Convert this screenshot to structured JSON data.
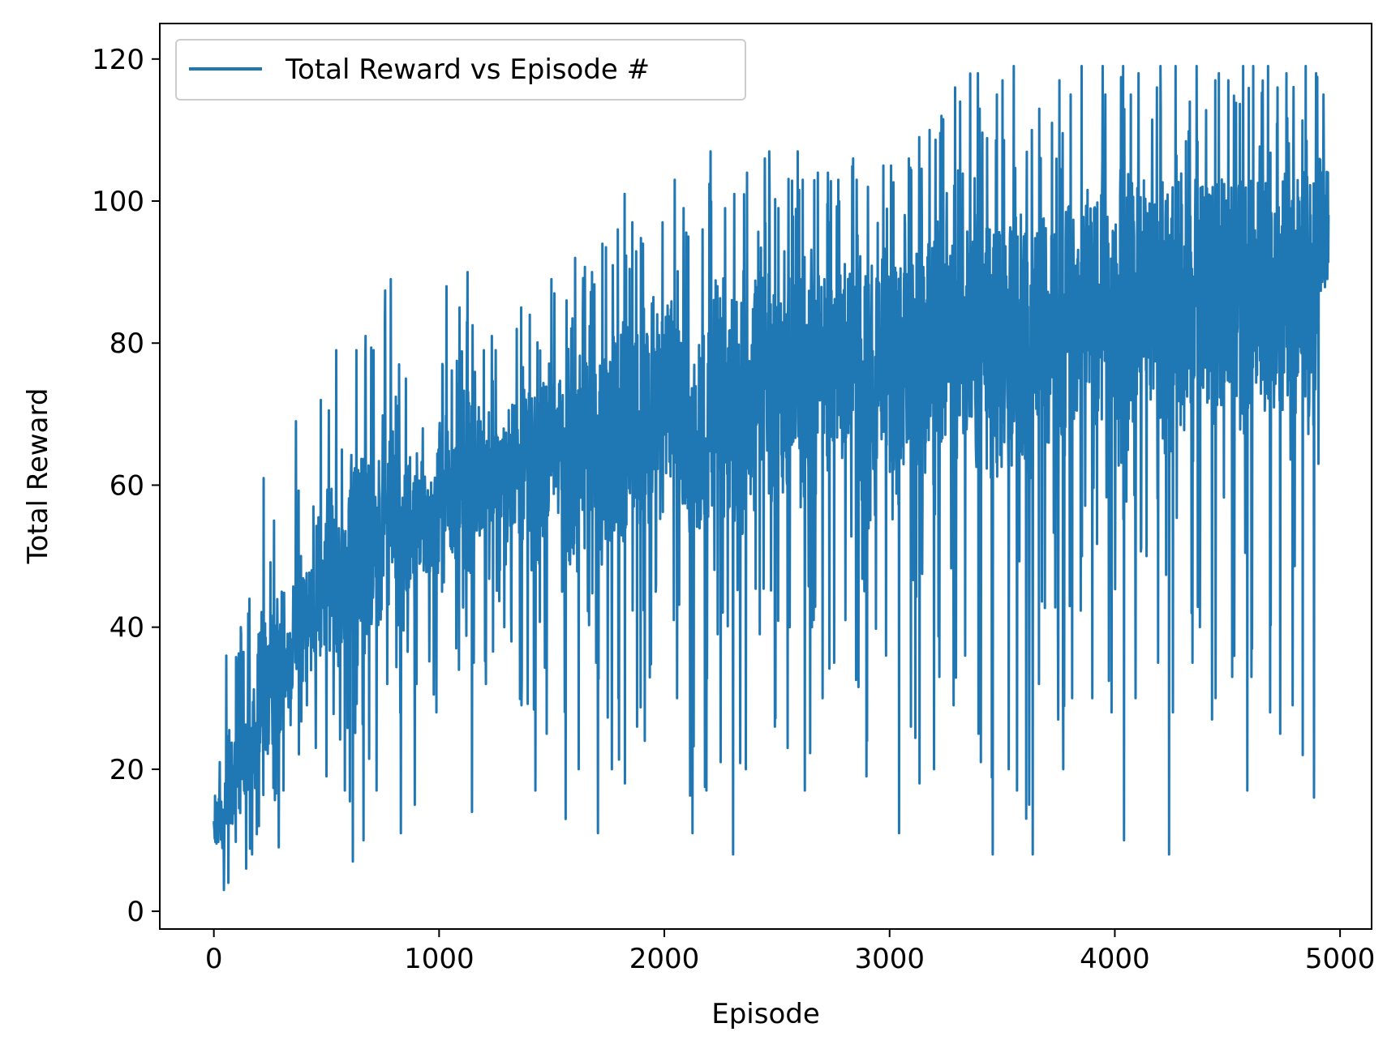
{
  "chart_data": {
    "type": "line",
    "title": "",
    "xlabel": "Episode",
    "ylabel": "Total Reward",
    "xlim": [
      -240,
      5140
    ],
    "ylim": [
      -2.5,
      125
    ],
    "xticks": [
      0,
      1000,
      2000,
      3000,
      4000,
      5000
    ],
    "xtick_labels": [
      "0",
      "1000",
      "2000",
      "3000",
      "4000",
      "5000"
    ],
    "yticks": [
      0,
      20,
      40,
      60,
      80,
      100,
      120
    ],
    "ytick_labels": [
      "0",
      "20",
      "40",
      "60",
      "80",
      "100",
      "120"
    ],
    "grid": false,
    "legend": {
      "placement": "top-left",
      "entries": [
        "Total Reward vs Episode #"
      ]
    },
    "series": [
      {
        "name": "Total Reward vs Episode #",
        "color": "#1f77b4",
        "x_start": 0,
        "x_step": 50,
        "values_max": [
          21,
          36,
          40,
          44,
          61,
          55,
          45,
          69,
          57,
          72,
          79,
          65,
          79,
          81,
          79,
          89,
          77,
          75,
          68,
          65,
          88,
          85,
          90,
          79,
          81,
          79,
          82,
          85,
          84,
          89,
          87,
          86,
          92,
          90,
          94,
          96,
          101,
          97,
          94,
          97,
          103,
          99,
          95,
          96,
          107,
          99,
          101,
          104,
          106,
          107,
          99,
          107,
          103,
          104,
          104,
          103,
          106,
          103,
          102,
          105,
          105,
          106,
          109,
          110,
          112,
          116,
          114,
          118,
          113,
          115,
          117,
          119,
          110,
          113,
          111,
          117,
          115,
          119,
          119,
          115,
          119,
          115,
          118,
          116,
          119,
          119,
          114,
          119,
          117,
          118,
          117,
          119,
          119,
          119,
          116,
          118,
          119,
          118,
          115
        ],
        "values_min": [
          3,
          4,
          6,
          8,
          12,
          9,
          17,
          21,
          29,
          23,
          19,
          17,
          7,
          10,
          17,
          32,
          11,
          15,
          32,
          28,
          45,
          34,
          14,
          35,
          32,
          40,
          38,
          29,
          17,
          25,
          45,
          13,
          20,
          35,
          11,
          20,
          18,
          26,
          24,
          45,
          41,
          30,
          11,
          17,
          39,
          21,
          8,
          20,
          39,
          26,
          23,
          40,
          17,
          40,
          30,
          35,
          41,
          19,
          24,
          36,
          11,
          26,
          18,
          20,
          33,
          29,
          36,
          25,
          21,
          8,
          20,
          17,
          8,
          32,
          27,
          20,
          30,
          50,
          30,
          28,
          10,
          30,
          50,
          35,
          8,
          28,
          35,
          40,
          27,
          30,
          33,
          17,
          33,
          28,
          25,
          29,
          22,
          16,
          63
        ],
        "values_mean": [
          12,
          16,
          19,
          22,
          27,
          31,
          35,
          38,
          41,
          43,
          45,
          47,
          49,
          50,
          52,
          53,
          54,
          55,
          56,
          57,
          58,
          59,
          60,
          61,
          62,
          62,
          63,
          64,
          64,
          65,
          66,
          66,
          67,
          68,
          68,
          69,
          70,
          70,
          71,
          71,
          72,
          72,
          73,
          73,
          74,
          74,
          75,
          75,
          76,
          76,
          77,
          77,
          78,
          78,
          79,
          79,
          79,
          80,
          80,
          81,
          81,
          81,
          82,
          82,
          83,
          83,
          83,
          84,
          84,
          84,
          85,
          85,
          86,
          86,
          86,
          87,
          87,
          87,
          88,
          88,
          88,
          89,
          89,
          89,
          90,
          90,
          90,
          91,
          91,
          91,
          92,
          92,
          92,
          93,
          93,
          93,
          94,
          94,
          100
        ]
      }
    ]
  }
}
